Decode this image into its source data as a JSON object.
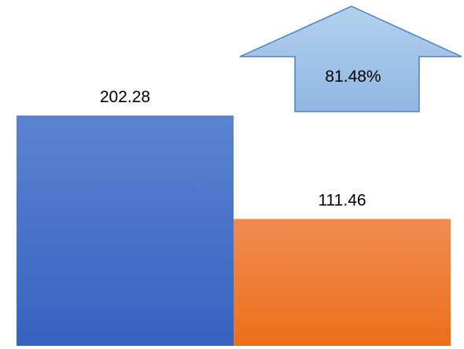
{
  "chart_data": {
    "type": "bar",
    "title": "",
    "xlabel": "",
    "ylabel": "",
    "categories": [
      "",
      ""
    ],
    "values": [
      202.28,
      111.46
    ],
    "value_labels": [
      "202.28",
      "111.46"
    ],
    "ylim": [
      0,
      202.28
    ],
    "grid": false,
    "legend": "none",
    "bar_colors": [
      "#4472c4",
      "#ed7d31"
    ],
    "annotation": {
      "shape": "up-arrow",
      "text": "81.48%",
      "fill": "#9dc3e6",
      "stroke": "#4f81bd"
    }
  }
}
